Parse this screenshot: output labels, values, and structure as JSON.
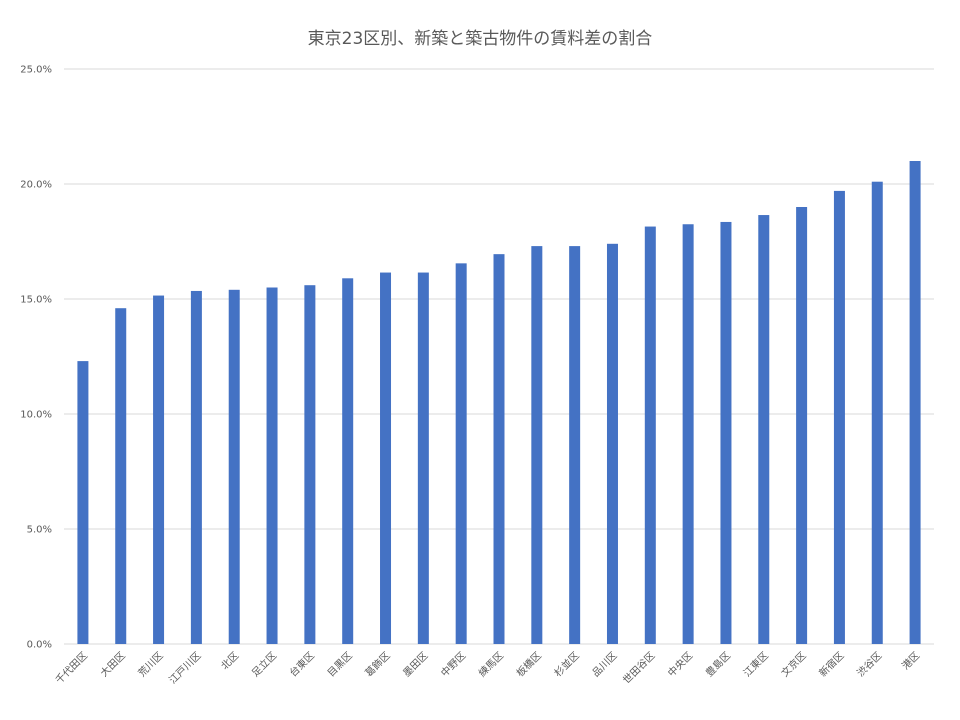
{
  "chart_data": {
    "type": "bar",
    "title": "東京23区別、新築と築古物件の賃料差の割合",
    "xlabel": "",
    "ylabel": "",
    "ylim": [
      0,
      25
    ],
    "yticks": [
      "0.0%",
      "5.0%",
      "10.0%",
      "15.0%",
      "20.0%",
      "25.0%"
    ],
    "grid": true,
    "legend": "none",
    "categories": [
      "千代田区",
      "大田区",
      "荒川区",
      "江戸川区",
      "北区",
      "足立区",
      "台東区",
      "目黒区",
      "葛飾区",
      "墨田区",
      "中野区",
      "練馬区",
      "板橋区",
      "杉並区",
      "品川区",
      "世田谷区",
      "中央区",
      "豊島区",
      "江東区",
      "文京区",
      "新宿区",
      "渋谷区",
      "港区"
    ],
    "values": [
      12.3,
      14.6,
      15.15,
      15.35,
      15.4,
      15.5,
      15.6,
      15.9,
      16.15,
      16.15,
      16.55,
      16.95,
      17.3,
      17.3,
      17.4,
      18.15,
      18.25,
      18.35,
      18.65,
      19.0,
      19.7,
      20.1,
      21.0
    ],
    "colors": {
      "bar": "#4472c4",
      "grid": "#d9d9d9",
      "text": "#595959"
    }
  }
}
